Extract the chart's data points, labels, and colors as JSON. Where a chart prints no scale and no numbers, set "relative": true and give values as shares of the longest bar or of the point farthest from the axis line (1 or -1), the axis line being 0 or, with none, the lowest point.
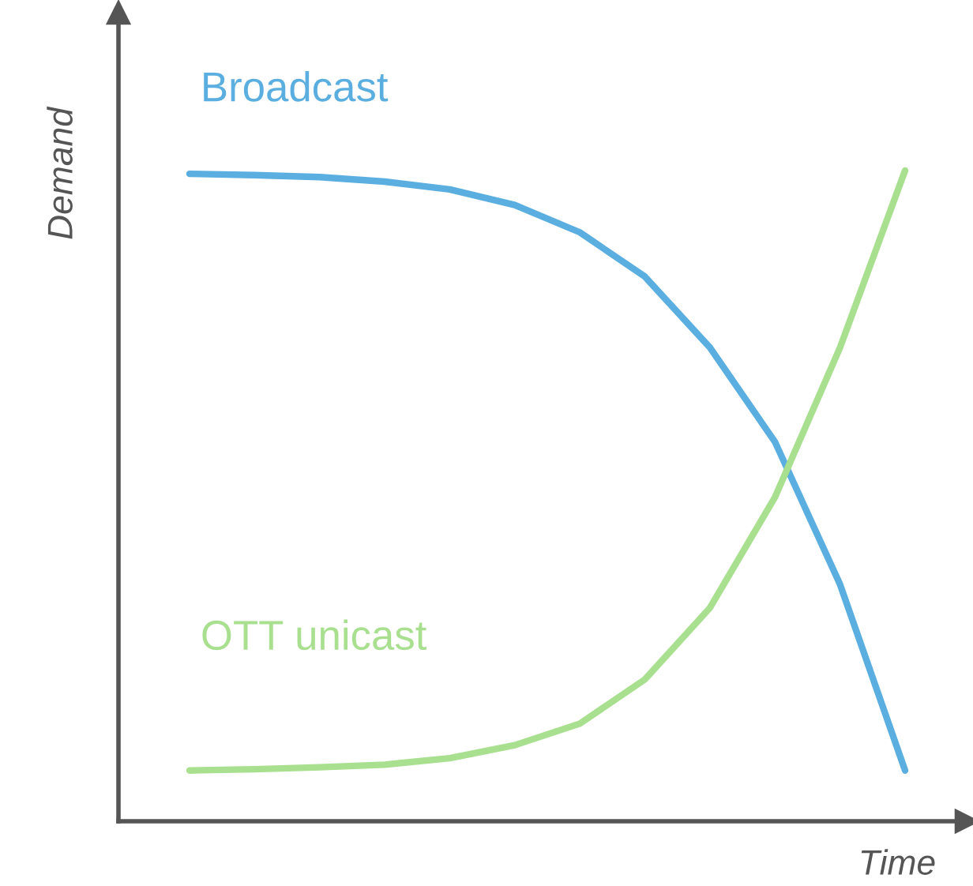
{
  "chart_data": {
    "type": "line",
    "relative": true,
    "xlabel": "Time",
    "ylabel": "Demand",
    "categories": [
      null,
      null,
      null,
      null,
      null,
      null,
      null,
      null,
      null,
      null,
      null,
      null
    ],
    "line_style": "solid",
    "marker": "none",
    "series": [
      {
        "name": "Broadcast",
        "color": "#5aaee0",
        "values": [
          0.995,
          0.993,
          0.99,
          0.983,
          0.971,
          0.947,
          0.905,
          0.837,
          0.728,
          0.583,
          0.364,
          0.078
        ]
      },
      {
        "name": "OTT unicast",
        "color": "#a8e08f",
        "values": [
          0.078,
          0.08,
          0.083,
          0.087,
          0.097,
          0.117,
          0.15,
          0.218,
          0.328,
          0.498,
          0.728,
          1.0
        ]
      }
    ]
  }
}
